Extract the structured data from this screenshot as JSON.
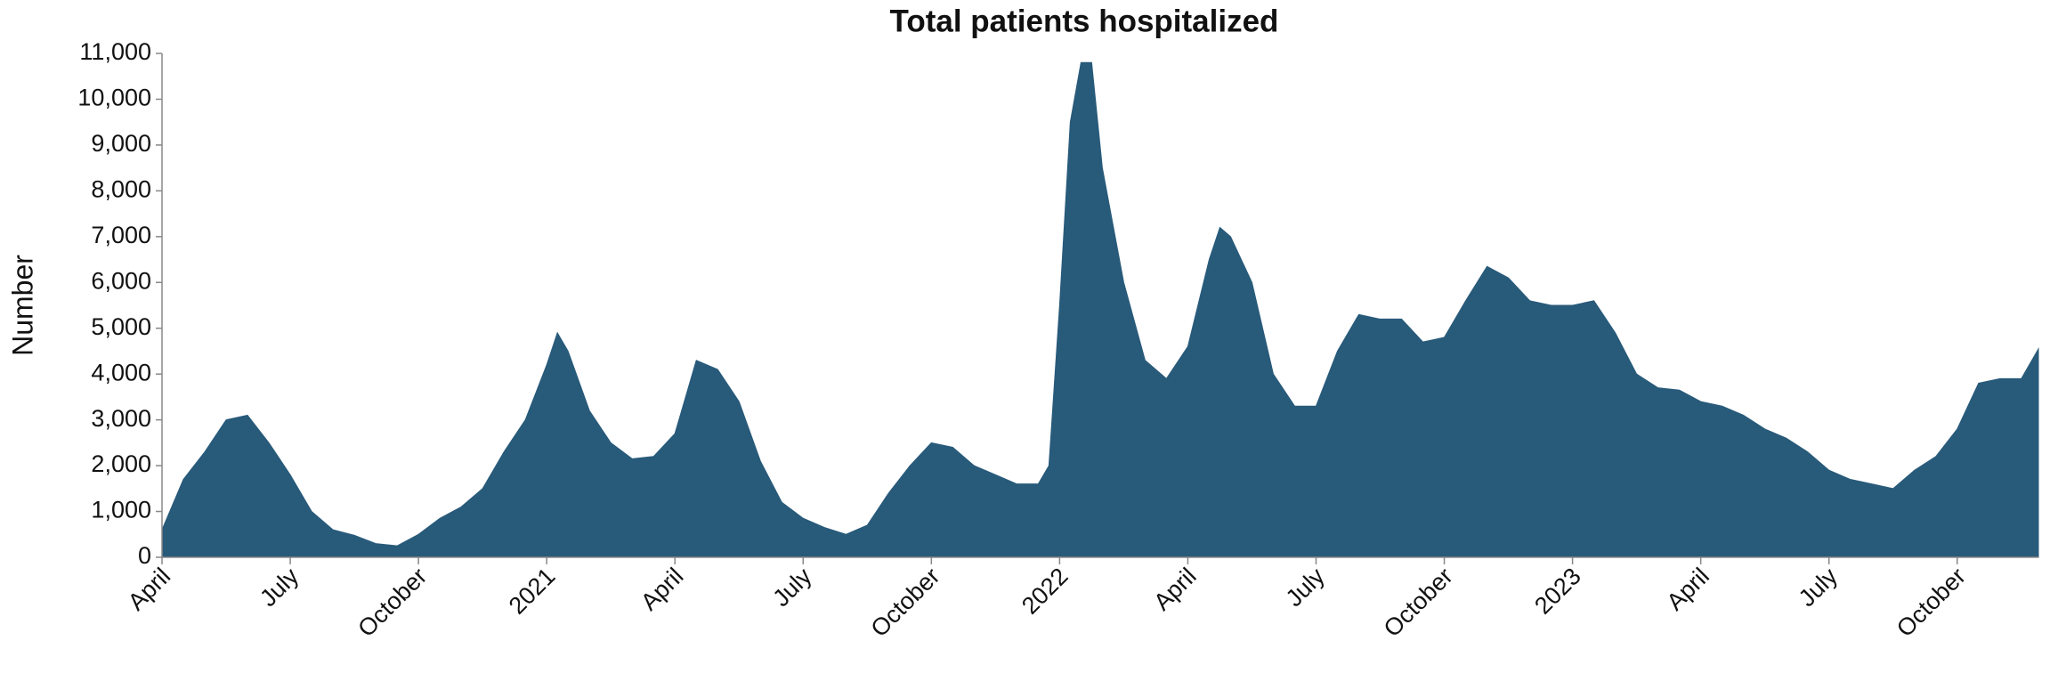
{
  "chart_data": {
    "type": "area",
    "title": "Total patients hospitalized",
    "y_label": "Number",
    "color": "#285a7a",
    "x": [
      0,
      0.5,
      1,
      1.5,
      2,
      2.5,
      3,
      3.5,
      4,
      4.5,
      5,
      5.5,
      6,
      6.5,
      7,
      7.5,
      8,
      8.5,
      9,
      9.25,
      9.5,
      10,
      10.5,
      11,
      11.5,
      12,
      12.5,
      13,
      13.5,
      14,
      14.5,
      15,
      15.5,
      16,
      16.5,
      17,
      17.5,
      18,
      18.5,
      19,
      19.5,
      20,
      20.5,
      20.75,
      21,
      21.25,
      21.5,
      21.75,
      22,
      22.5,
      23,
      23.5,
      24,
      24.5,
      24.75,
      25,
      25.5,
      26,
      26.5,
      27,
      27.5,
      28,
      28.5,
      29,
      29.5,
      30,
      30.5,
      31,
      31.5,
      32,
      32.5,
      33,
      33.5,
      34,
      34.5,
      35,
      35.5,
      36,
      36.5,
      37,
      37.5,
      38,
      38.5,
      39,
      39.5,
      40,
      40.5,
      41,
      41.5,
      42,
      42.5,
      43,
      43.5,
      43.9
    ],
    "values": [
      600,
      1700,
      2300,
      3000,
      3100,
      2500,
      1800,
      1000,
      600,
      480,
      300,
      250,
      500,
      850,
      1100,
      1500,
      2300,
      3000,
      4200,
      4900,
      4500,
      3200,
      2500,
      2150,
      2200,
      2700,
      4300,
      4100,
      3400,
      2100,
      1200,
      850,
      650,
      500,
      700,
      1400,
      2000,
      2500,
      2400,
      2000,
      1800,
      1600,
      1600,
      2000,
      5500,
      9500,
      10800,
      10800,
      8500,
      6000,
      4300,
      3900,
      4600,
      6500,
      7200,
      7000,
      6000,
      4000,
      3300,
      3300,
      4500,
      5300,
      5200,
      5200,
      4700,
      4800,
      5600,
      6350,
      6100,
      5600,
      5500,
      5500,
      5600,
      4900,
      4000,
      3700,
      3650,
      3400,
      3300,
      3100,
      2800,
      2600,
      2300,
      1900,
      1700,
      1600,
      1500,
      1900,
      2200,
      2800,
      3800,
      3900,
      3900,
      4550
    ],
    "xlim": [
      0,
      43.9
    ],
    "xticks": [
      {
        "value": 0,
        "label": "April"
      },
      {
        "value": 3,
        "label": "July"
      },
      {
        "value": 6,
        "label": "October"
      },
      {
        "value": 9,
        "label": "2021"
      },
      {
        "value": 12,
        "label": "April"
      },
      {
        "value": 15,
        "label": "July"
      },
      {
        "value": 18,
        "label": "October"
      },
      {
        "value": 21,
        "label": "2022"
      },
      {
        "value": 24,
        "label": "April"
      },
      {
        "value": 27,
        "label": "July"
      },
      {
        "value": 30,
        "label": "October"
      },
      {
        "value": 33,
        "label": "2023"
      },
      {
        "value": 36,
        "label": "April"
      },
      {
        "value": 39,
        "label": "July"
      },
      {
        "value": 42,
        "label": "October"
      }
    ],
    "ylim": [
      0,
      11000
    ],
    "yticks": [
      0,
      {
        "value": 1000,
        "label": "1,000"
      },
      {
        "value": 2000,
        "label": "2,000"
      },
      {
        "value": 3000,
        "label": "3,000"
      },
      {
        "value": 4000,
        "label": "4,000"
      },
      {
        "value": 5000,
        "label": "5,000"
      },
      {
        "value": 6000,
        "label": "6,000"
      },
      {
        "value": 7000,
        "label": "7,000"
      },
      {
        "value": 8000,
        "label": "8,000"
      },
      {
        "value": 9000,
        "label": "9,000"
      },
      {
        "value": 10000,
        "label": "10,000"
      },
      {
        "value": 11000,
        "label": "11,000"
      }
    ],
    "grid": false
  }
}
